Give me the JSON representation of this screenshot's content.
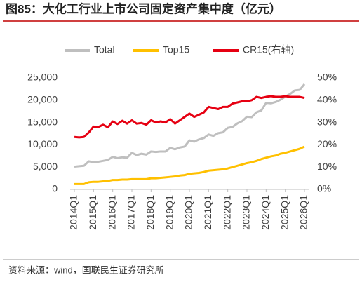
{
  "chart_data": {
    "type": "line",
    "title": "图85：大化工行业上市公司固定资产集中度（亿元）",
    "source": "资料来源：wind，国联民生证券研究所",
    "categories": [
      "2014Q1",
      null,
      null,
      null,
      "2015Q1",
      null,
      null,
      null,
      "2016Q1",
      null,
      null,
      null,
      "2017Q1",
      null,
      null,
      null,
      "2018Q1",
      null,
      null,
      null,
      "2019Q1",
      null,
      null,
      null,
      "2020Q1",
      null,
      null,
      null,
      "2021Q1",
      null,
      null,
      null,
      "2022Q1",
      null,
      null,
      null,
      "2023Q1",
      null,
      null,
      null,
      "2024Q1",
      null,
      null,
      null,
      "2025Q1",
      null,
      null,
      null,
      "2026Q1"
    ],
    "series": [
      {
        "name": "Total",
        "color": "#bfbfbf",
        "values": [
          5100,
          5200,
          5300,
          6300,
          6100,
          6200,
          6400,
          6600,
          7300,
          7000,
          7200,
          7100,
          8200,
          7700,
          8000,
          7800,
          8500,
          8400,
          8500,
          8500,
          9300,
          9000,
          9400,
          9600,
          11000,
          10700,
          11200,
          11500,
          12300,
          12000,
          12600,
          12800,
          13800,
          14000,
          14800,
          15300,
          16300,
          16200,
          17300,
          17700,
          19400,
          19300,
          19600,
          20100,
          20800,
          21400,
          22200,
          22300,
          23600
        ]
      },
      {
        "name": "Top15",
        "color": "#ffc000",
        "values": [
          1200,
          1200,
          1200,
          1600,
          1700,
          1700,
          1800,
          1900,
          2100,
          2100,
          2200,
          2200,
          2300,
          2300,
          2300,
          2300,
          2500,
          2500,
          2600,
          2700,
          2800,
          2900,
          3100,
          3200,
          3500,
          3600,
          3700,
          3900,
          4200,
          4300,
          4400,
          4500,
          4700,
          5000,
          5300,
          5600,
          5900,
          6100,
          6400,
          6800,
          7100,
          7400,
          7600,
          8000,
          8200,
          8500,
          8800,
          9100,
          9600
        ]
      },
      {
        "name": "CR15(右轴)",
        "color": "#e60012",
        "axis": "y2",
        "values": [
          23.5,
          23.3,
          23.5,
          25.5,
          28.2,
          28,
          29,
          27.8,
          30.5,
          29.3,
          30.8,
          29.5,
          31,
          29.5,
          29.8,
          29,
          31,
          30,
          30.5,
          30,
          31.5,
          29.5,
          31,
          32.5,
          34,
          32.5,
          33.5,
          34.5,
          37,
          36.5,
          36,
          37,
          37,
          38.5,
          39,
          39.5,
          39.5,
          40,
          41.5,
          41,
          41.5,
          41.8,
          41.5,
          41.5,
          41.8,
          41.5,
          41.5,
          41.5,
          41
        ]
      }
    ],
    "ylim": [
      0,
      25000
    ],
    "yticks": [
      0,
      {
        "value": 5000,
        "label": "5,000"
      },
      {
        "value": 10000,
        "label": "10,000"
      },
      {
        "value": 15000,
        "label": "15,000"
      },
      {
        "value": 20000,
        "label": "20,000"
      },
      {
        "value": 25000,
        "label": "25,000"
      }
    ],
    "y2lim": [
      0,
      50
    ],
    "y2ticks": [
      {
        "value": 0,
        "label": "0%"
      },
      {
        "value": 10,
        "label": "10%"
      },
      {
        "value": 20,
        "label": "20%"
      },
      {
        "value": 30,
        "label": "30%"
      },
      {
        "value": 40,
        "label": "40%"
      },
      {
        "value": 50,
        "label": "50%"
      }
    ],
    "grid": false,
    "legend": "top"
  }
}
